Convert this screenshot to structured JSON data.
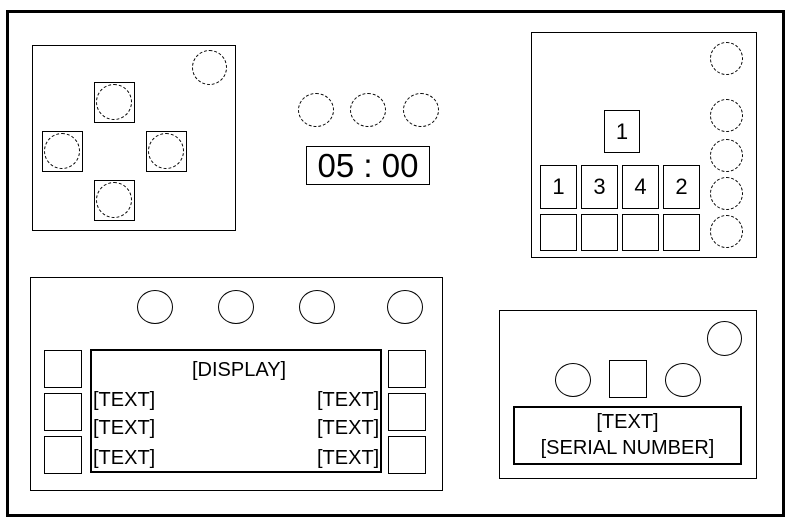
{
  "timer": {
    "text": "05 : 00"
  },
  "keypad": {
    "display_digit": "1",
    "digits": [
      "1",
      "3",
      "4",
      "2"
    ]
  },
  "display_module": {
    "header": "[DISPLAY]",
    "left_lines": [
      "[TEXT]",
      "[TEXT]",
      "[TEXT]"
    ],
    "right_lines": [
      "[TEXT]",
      "[TEXT]",
      "[TEXT]"
    ]
  },
  "serial_module": {
    "line1": "[TEXT]",
    "line2": "[SERIAL NUMBER]"
  }
}
